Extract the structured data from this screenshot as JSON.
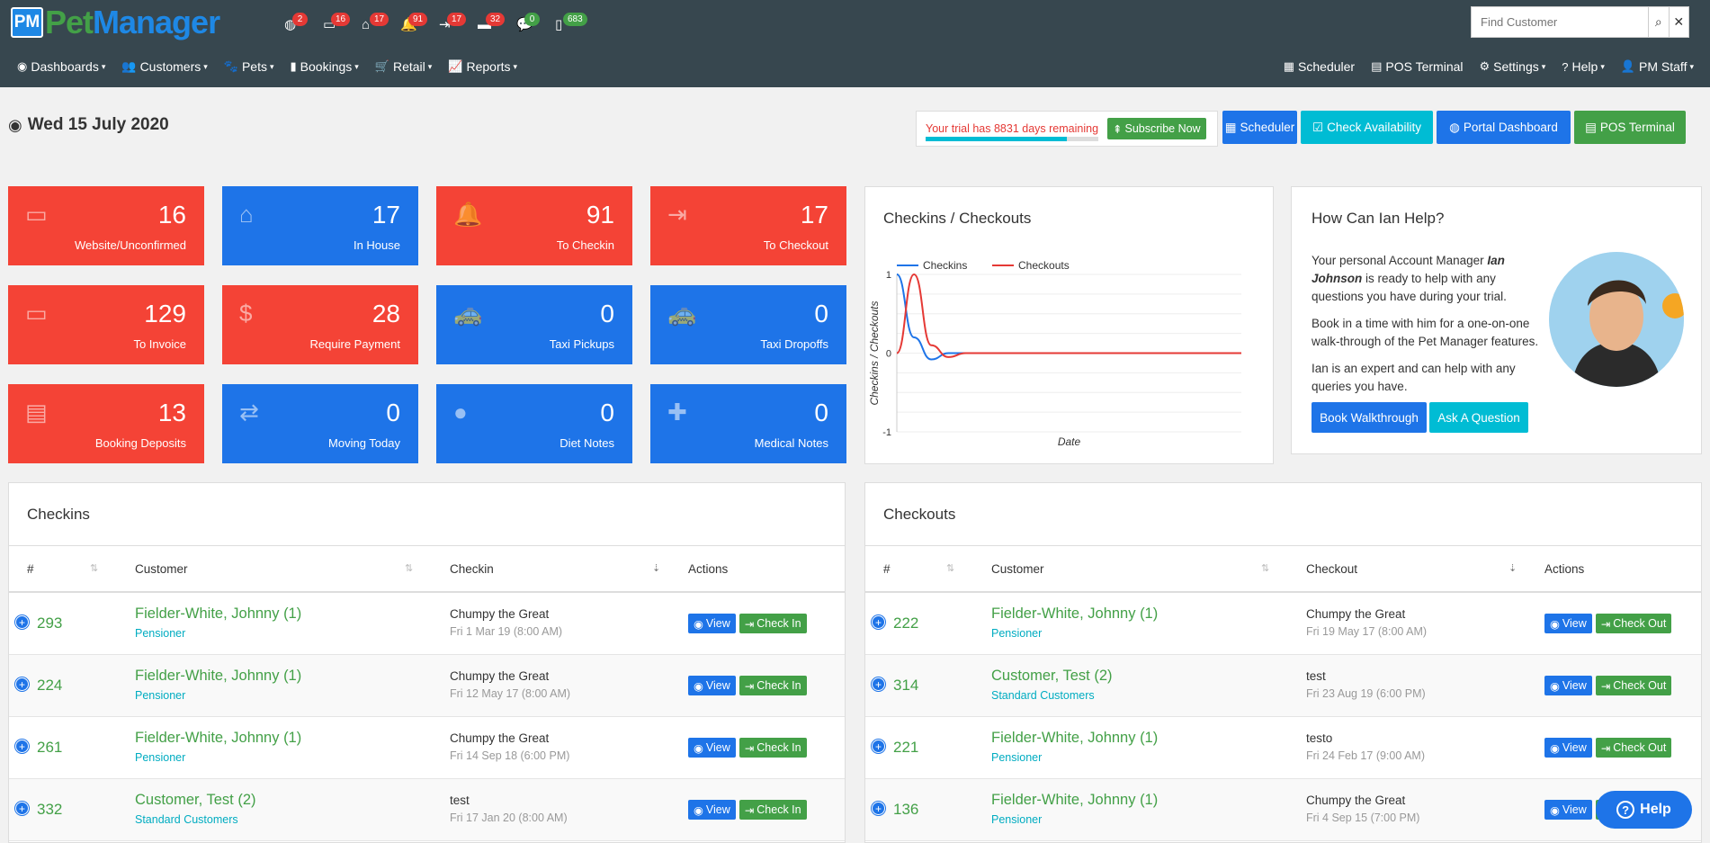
{
  "app": {
    "logo_badge": "PM",
    "logo_part1": "Pet",
    "logo_part2": "Manager"
  },
  "notifications": [
    {
      "icon": "globe-icon",
      "count": "2",
      "color": "red"
    },
    {
      "icon": "inbox-icon",
      "count": "16",
      "color": "red"
    },
    {
      "icon": "home-icon",
      "count": "17",
      "color": "red"
    },
    {
      "icon": "bell-icon",
      "count": "91",
      "color": "red"
    },
    {
      "icon": "sign-out-icon",
      "count": "17",
      "color": "red"
    },
    {
      "icon": "money-icon",
      "count": "32",
      "color": "red"
    },
    {
      "icon": "comments-icon",
      "count": "0",
      "color": "green"
    },
    {
      "icon": "mobile-icon",
      "count": "683",
      "color": "green"
    }
  ],
  "search": {
    "placeholder": "Find Customer"
  },
  "menu_left": [
    "Dashboards",
    "Customers",
    "Pets",
    "Bookings",
    "Retail",
    "Reports"
  ],
  "menu_right": {
    "scheduler": "Scheduler",
    "pos": "POS Terminal",
    "settings": "Settings",
    "help": "Help",
    "staff": "PM Staff"
  },
  "date": "Wed 15 July 2020",
  "trial": {
    "text": "Your trial has 8831 days remaining",
    "progress_percent": 82,
    "subscribe": "Subscribe Now"
  },
  "top_buttons": {
    "scheduler": "Scheduler",
    "check": "Check Availability",
    "portal": "Portal Dashboard",
    "pos": "POS Terminal"
  },
  "tiles": [
    {
      "value": "16",
      "label": "Website/Unconfirmed",
      "color": "red",
      "icon": "inbox-icon"
    },
    {
      "value": "17",
      "label": "In House",
      "color": "blue",
      "icon": "home-icon"
    },
    {
      "value": "91",
      "label": "To Checkin",
      "color": "red",
      "icon": "bell-icon"
    },
    {
      "value": "17",
      "label": "To Checkout",
      "color": "red",
      "icon": "sign-out-icon"
    },
    {
      "value": "129",
      "label": "To Invoice",
      "color": "red",
      "icon": "credit-card-icon"
    },
    {
      "value": "28",
      "label": "Require Payment",
      "color": "red",
      "icon": "money-card-icon"
    },
    {
      "value": "0",
      "label": "Taxi Pickups",
      "color": "blue",
      "icon": "taxi-icon"
    },
    {
      "value": "0",
      "label": "Taxi Dropoffs",
      "color": "blue",
      "icon": "taxi-icon"
    },
    {
      "value": "13",
      "label": "Booking Deposits",
      "color": "red",
      "icon": "document-icon"
    },
    {
      "value": "0",
      "label": "Moving Today",
      "color": "blue",
      "icon": "exchange-icon"
    },
    {
      "value": "0",
      "label": "Diet Notes",
      "color": "blue",
      "icon": "apple-icon"
    },
    {
      "value": "0",
      "label": "Medical Notes",
      "color": "blue",
      "icon": "medical-icon"
    }
  ],
  "chart_data": {
    "type": "line",
    "title": "Checkins / Checkouts",
    "xlabel": "Date",
    "ylabel": "Checkins / Checkouts",
    "ylim": [
      -1,
      1
    ],
    "yticks": [
      "1",
      "0",
      "-1"
    ],
    "series": [
      {
        "name": "Checkins",
        "color": "#1e74e8",
        "values": [
          1,
          0.2,
          -0.08,
          0,
          0,
          0,
          0,
          0,
          0,
          0,
          0,
          0,
          0
        ]
      },
      {
        "name": "Checkouts",
        "color": "#e53935",
        "values": [
          0,
          1,
          0.1,
          -0.05,
          0,
          0,
          0,
          0,
          0,
          0,
          0,
          0,
          0
        ]
      }
    ]
  },
  "help_panel": {
    "title": "How Can Ian Help?",
    "p1_a": "Your personal Account Manager ",
    "p1_name": "Ian Johnson",
    "p1_b": " is ready to help with any questions you have during your trial.",
    "p2": "Book in a time with him for a one-on-one walk-through of the Pet Manager features.",
    "p3": "Ian is an expert and can help with any queries you have.",
    "btn1": "Book Walkthrough",
    "btn2": "Ask A Question"
  },
  "checkins": {
    "title": "Checkins",
    "columns": [
      "#",
      "Customer",
      "Checkin",
      "Actions"
    ],
    "rows": [
      {
        "id": "293",
        "name": "Fielder-White, Johnny (1)",
        "group": "Pensioner",
        "pet": "Chumpy the Great",
        "date": "Fri 1 Mar 19 (8:00 AM)"
      },
      {
        "id": "224",
        "name": "Fielder-White, Johnny (1)",
        "group": "Pensioner",
        "pet": "Chumpy the Great",
        "date": "Fri 12 May 17 (8:00 AM)"
      },
      {
        "id": "261",
        "name": "Fielder-White, Johnny (1)",
        "group": "Pensioner",
        "pet": "Chumpy the Great",
        "date": "Fri 14 Sep 18 (6:00 PM)"
      },
      {
        "id": "332",
        "name": "Customer, Test (2)",
        "group": "Standard Customers",
        "pet": "test",
        "date": "Fri 17 Jan 20 (8:00 AM)"
      }
    ],
    "view": "View",
    "action": "Check In"
  },
  "checkouts": {
    "title": "Checkouts",
    "columns": [
      "#",
      "Customer",
      "Checkout",
      "Actions"
    ],
    "rows": [
      {
        "id": "222",
        "name": "Fielder-White, Johnny (1)",
        "group": "Pensioner",
        "pet": "Chumpy the Great",
        "date": "Fri 19 May 17 (8:00 AM)"
      },
      {
        "id": "314",
        "name": "Customer, Test (2)",
        "group": "Standard Customers",
        "pet": "test",
        "date": "Fri 23 Aug 19 (6:00 PM)"
      },
      {
        "id": "221",
        "name": "Fielder-White, Johnny (1)",
        "group": "Pensioner",
        "pet": "testo",
        "date": "Fri 24 Feb 17 (9:00 AM)"
      },
      {
        "id": "136",
        "name": "Fielder-White, Johnny (1)",
        "group": "Pensioner",
        "pet": "Chumpy the Great",
        "date": "Fri 4 Sep 15 (7:00 PM)"
      }
    ],
    "view": "View",
    "action": "Check Out"
  },
  "help_button": "Help"
}
